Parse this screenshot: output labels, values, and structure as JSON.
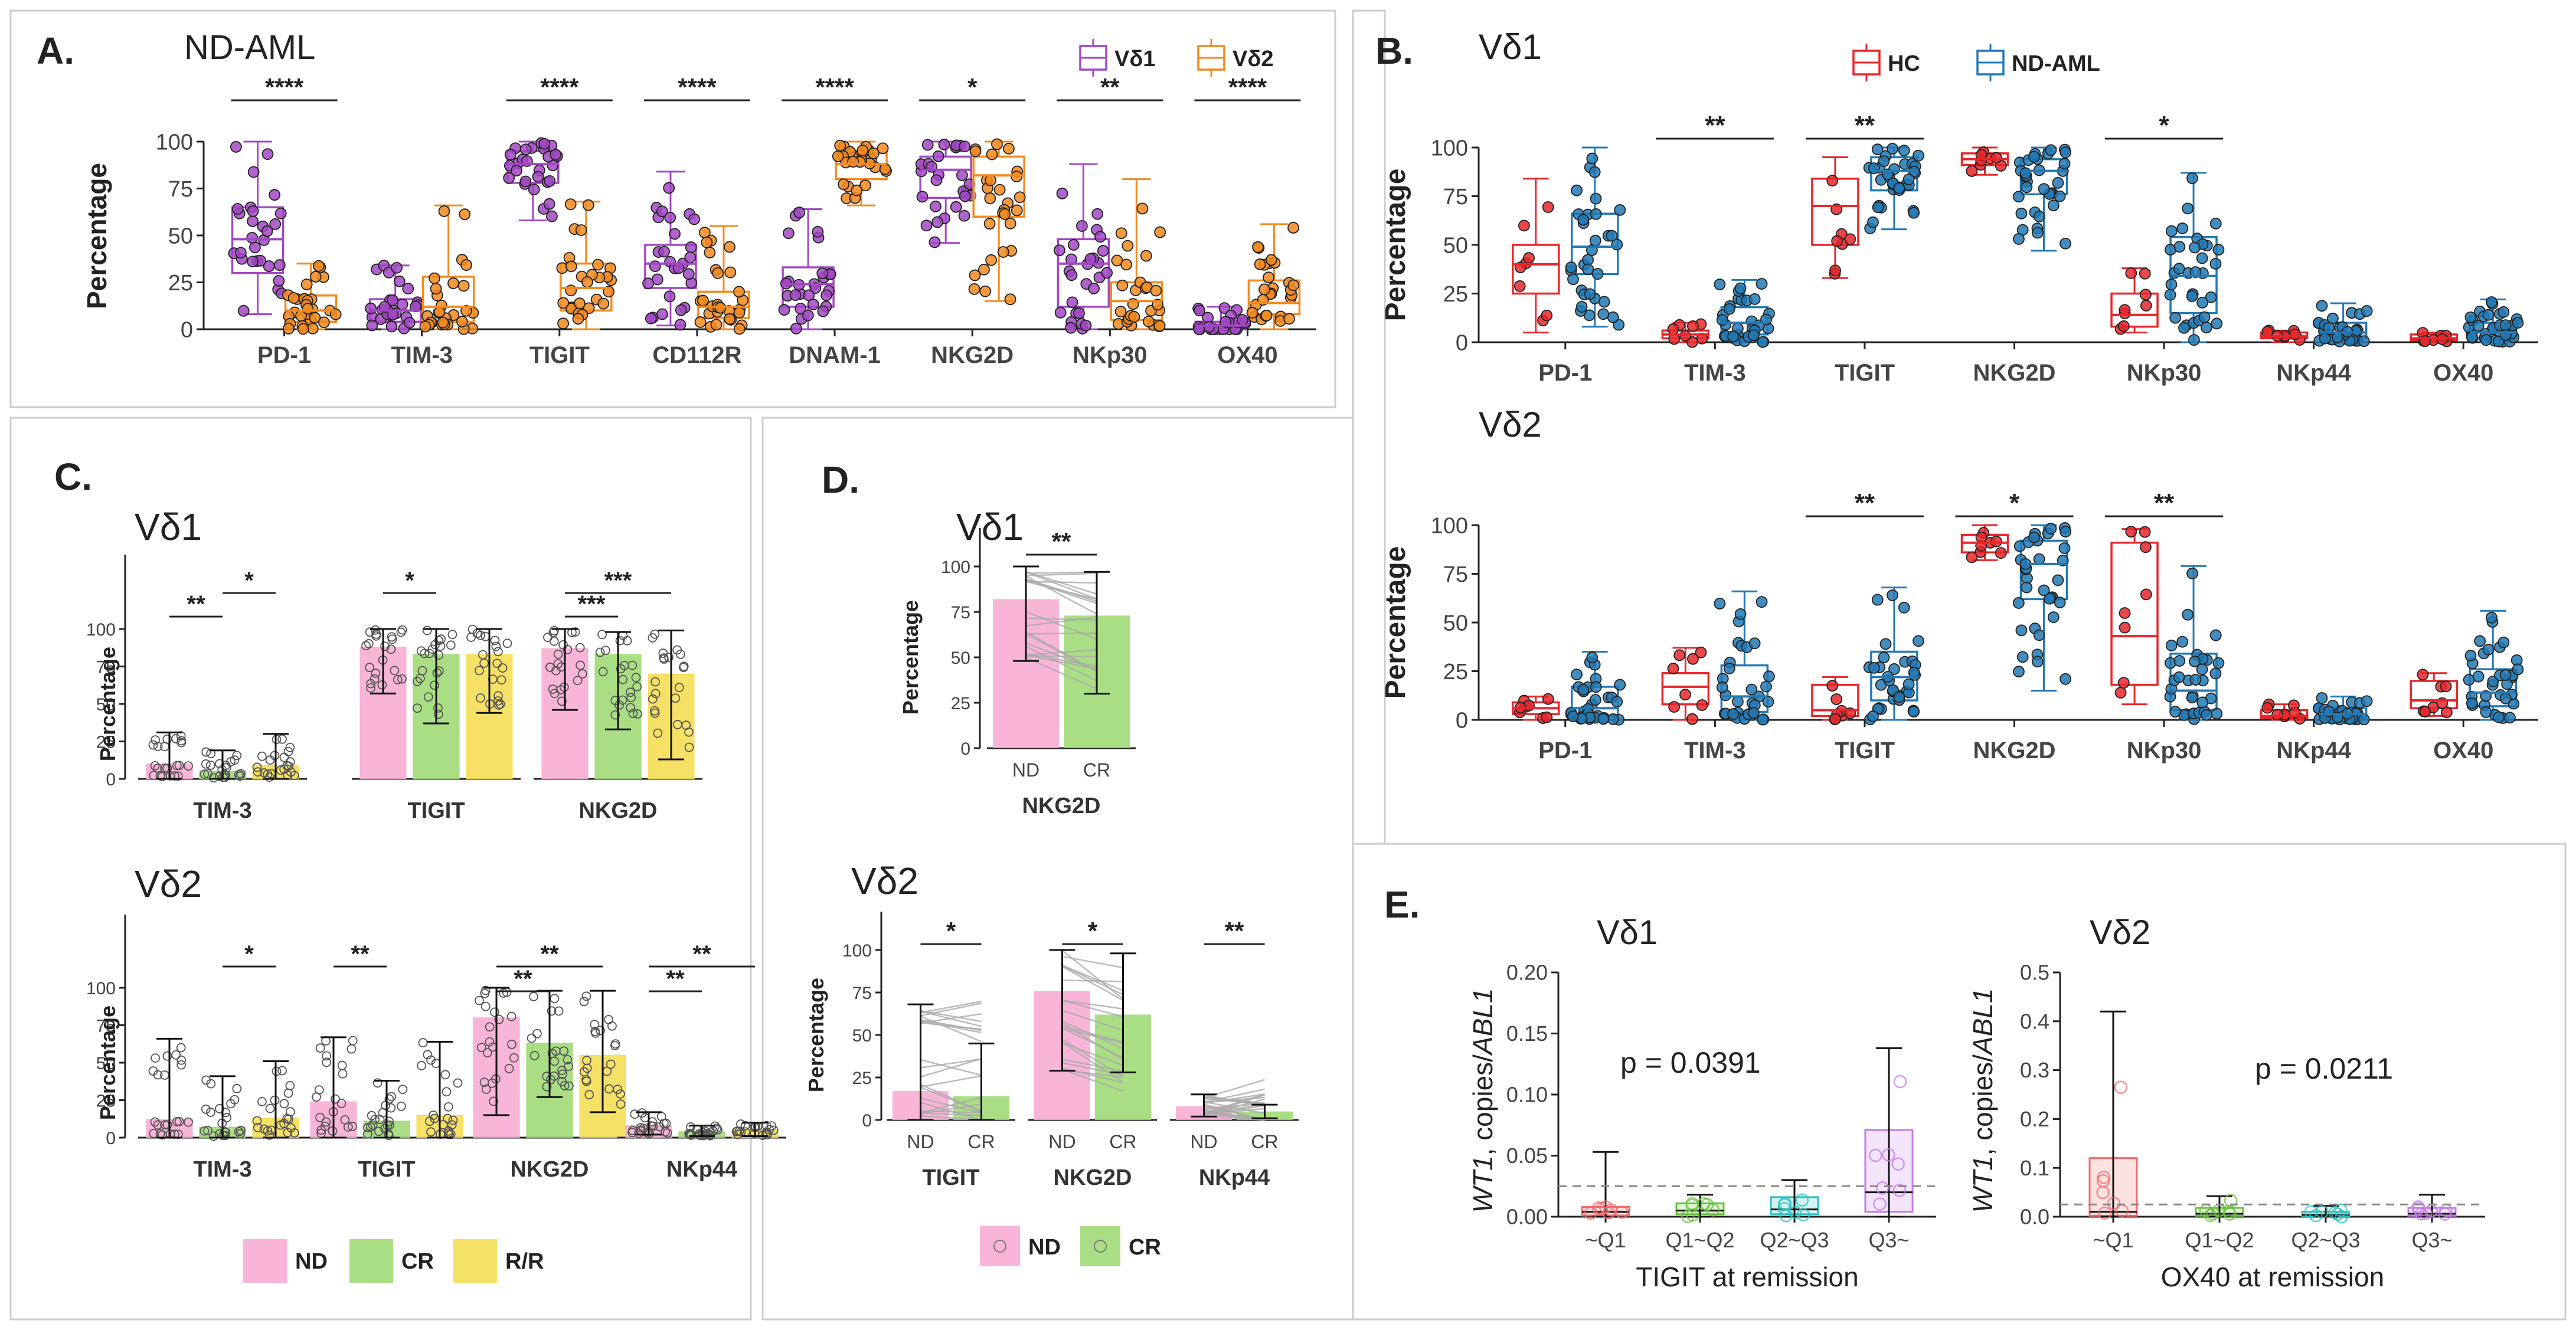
{
  "figure": {
    "border_color": "#cccccc",
    "colors": {
      "vd1": "#a247c4",
      "vd2": "#f28a1e",
      "hc": "#e8262a",
      "ndaml": "#2179b5",
      "nd": "#f7a8d0",
      "cr": "#9bd86e",
      "rr": "#f5dc4c",
      "q1": "#f26b6b",
      "q2": "#6ac23c",
      "q3": "#2bc0c0",
      "q4": "#c47ae8"
    }
  },
  "chart_data": [
    {
      "id": "A",
      "type": "box",
      "panel_label": "A.",
      "title": "ND-AML",
      "ylabel": "Percentage",
      "ylim": [
        0,
        100
      ],
      "yticks": [
        "0",
        "25",
        "50",
        "75",
        "100"
      ],
      "legend": [
        "Vδ1",
        "Vδ2"
      ],
      "categories": [
        "PD-1",
        "TIM-3",
        "TIGIT",
        "CD112R",
        "DNAM-1",
        "NKG2D",
        "NKp30",
        "OX40"
      ],
      "series": [
        {
          "name": "Vδ1",
          "boxes": [
            [
              8,
              30,
              48,
              65,
              100
            ],
            [
              0,
              4,
              10,
              16,
              34
            ],
            [
              58,
              78,
              88,
              95,
              100
            ],
            [
              2,
              22,
              35,
              45,
              84
            ],
            [
              0,
              12,
              24,
              33,
              64
            ],
            [
              46,
              70,
              85,
              92,
              100
            ],
            [
              0,
              12,
              35,
              48,
              88
            ],
            [
              0,
              0,
              2,
              4,
              12
            ]
          ]
        },
        {
          "name": "Vδ2",
          "boxes": [
            [
              0,
              4,
              10,
              18,
              35
            ],
            [
              0,
              4,
              12,
              28,
              66
            ],
            [
              0,
              10,
              22,
              35,
              68
            ],
            [
              0,
              6,
              12,
              20,
              55
            ],
            [
              66,
              80,
              88,
              94,
              100
            ],
            [
              15,
              60,
              82,
              92,
              100
            ],
            [
              0,
              5,
              15,
              25,
              80
            ],
            [
              0,
              8,
              14,
              26,
              56
            ]
          ]
        }
      ],
      "significance": [
        "****",
        "",
        "****",
        "****",
        "****",
        "*",
        "**",
        "****"
      ]
    },
    {
      "id": "B1",
      "type": "box",
      "panel_label": "B.",
      "title": "Vδ1",
      "ylabel": "Percentage",
      "ylim": [
        0,
        100
      ],
      "yticks": [
        "0",
        "25",
        "50",
        "75",
        "100"
      ],
      "legend": [
        "HC",
        "ND-AML"
      ],
      "categories": [
        "PD-1",
        "TIM-3",
        "TIGIT",
        "NKG2D",
        "NKp30",
        "NKp44",
        "OX40"
      ],
      "series": [
        {
          "name": "HC",
          "boxes": [
            [
              5,
              25,
              40,
              50,
              84
            ],
            [
              0,
              2,
              4,
              6,
              10
            ],
            [
              33,
              50,
              70,
              84,
              95
            ],
            [
              86,
              91,
              94,
              97,
              100
            ],
            [
              5,
              8,
              14,
              25,
              38
            ],
            [
              0,
              2,
              3,
              5,
              6
            ],
            [
              0,
              1,
              2,
              4,
              5
            ]
          ]
        },
        {
          "name": "ND-AML",
          "boxes": [
            [
              8,
              35,
              49,
              66,
              100
            ],
            [
              0,
              4,
              10,
              18,
              32
            ],
            [
              58,
              78,
              88,
              95,
              100
            ],
            [
              47,
              76,
              88,
              94,
              100
            ],
            [
              0,
              15,
              34,
              54,
              87
            ],
            [
              0,
              2,
              5,
              10,
              20
            ],
            [
              0,
              2,
              5,
              10,
              22
            ]
          ]
        }
      ],
      "significance": [
        "",
        "**",
        "**",
        "",
        "*",
        "",
        ""
      ]
    },
    {
      "id": "B2",
      "type": "box",
      "title": "Vδ2",
      "ylabel": "Percentage",
      "ylim": [
        0,
        100
      ],
      "yticks": [
        "0",
        "25",
        "50",
        "75",
        "100"
      ],
      "categories": [
        "PD-1",
        "TIM-3",
        "TIGIT",
        "NKG2D",
        "NKp30",
        "NKp44",
        "OX40"
      ],
      "series": [
        {
          "name": "HC",
          "boxes": [
            [
              0,
              3,
              6,
              9,
              12
            ],
            [
              0,
              8,
              17,
              24,
              37
            ],
            [
              0,
              2,
              5,
              18,
              22
            ],
            [
              82,
              86,
              91,
              95,
              100
            ],
            [
              8,
              18,
              43,
              91,
              98
            ],
            [
              0,
              1,
              2,
              5,
              8
            ],
            [
              2,
              6,
              10,
              20,
              24
            ]
          ]
        },
        {
          "name": "ND-AML",
          "boxes": [
            [
              0,
              2,
              6,
              17,
              35
            ],
            [
              0,
              4,
              12,
              28,
              66
            ],
            [
              0,
              10,
              22,
              35,
              68
            ],
            [
              15,
              62,
              80,
              92,
              100
            ],
            [
              0,
              5,
              15,
              34,
              79
            ],
            [
              0,
              1,
              3,
              6,
              12
            ],
            [
              0,
              7,
              14,
              26,
              56
            ]
          ]
        }
      ],
      "significance": [
        "",
        "",
        "**",
        "*",
        "**",
        "",
        ""
      ]
    },
    {
      "id": "C1",
      "type": "bar",
      "panel_label": "C.",
      "title": "Vδ1",
      "ylabel": "Percentage",
      "ylim": [
        0,
        100
      ],
      "yticks": [
        "0",
        "25",
        "50",
        "75",
        "100"
      ],
      "groups": [
        "TIM-3",
        "TIGIT",
        "NKG2D"
      ],
      "series_names": [
        "ND",
        "CR",
        "R/R"
      ],
      "values": [
        [
          10,
          5,
          9
        ],
        [
          88,
          83,
          83
        ],
        [
          87,
          83,
          70
        ]
      ],
      "err_low": [
        [
          0,
          0,
          0
        ],
        [
          57,
          37,
          44
        ],
        [
          46,
          33,
          13
        ]
      ],
      "err_high": [
        [
          31,
          19,
          30
        ],
        [
          100,
          100,
          100
        ],
        [
          100,
          98,
          99
        ]
      ],
      "significance": [
        [
          "**",
          "*"
        ],
        [
          "*"
        ],
        [
          "***",
          "***"
        ]
      ]
    },
    {
      "id": "C2",
      "type": "bar",
      "title": "Vδ2",
      "ylabel": "Percentage",
      "ylim": [
        0,
        100
      ],
      "yticks": [
        "0",
        "25",
        "50",
        "75",
        "100"
      ],
      "groups": [
        "TIM-3",
        "TIGIT",
        "NKG2D",
        "NKp44"
      ],
      "series_names": [
        "ND",
        "CR",
        "R/R"
      ],
      "values": [
        [
          12,
          7,
          13
        ],
        [
          24,
          11,
          15
        ],
        [
          80,
          63,
          55
        ],
        [
          8,
          4,
          5
        ]
      ],
      "err_low": [
        [
          0,
          0,
          0
        ],
        [
          0,
          0,
          0
        ],
        [
          15,
          27,
          17
        ],
        [
          2,
          1,
          1
        ]
      ],
      "err_high": [
        [
          66,
          41,
          51
        ],
        [
          67,
          38,
          64
        ],
        [
          100,
          98,
          98
        ],
        [
          17,
          8,
          10
        ]
      ],
      "significance": [
        [
          "*"
        ],
        [
          "**"
        ],
        [
          "**",
          "**"
        ],
        [
          "**",
          "**"
        ]
      ],
      "legend": [
        "ND",
        "CR",
        "R/R"
      ]
    },
    {
      "id": "D1",
      "type": "paired-bar",
      "panel_label": "D.",
      "title": "Vδ1",
      "ylabel": "Percentage",
      "ylim": [
        0,
        100
      ],
      "yticks": [
        "0",
        "25",
        "50",
        "75",
        "100"
      ],
      "groups": [
        "NKG2D"
      ],
      "xticks": [
        "ND",
        "CR"
      ],
      "values": [
        [
          82,
          73
        ]
      ],
      "err_low": [
        [
          48,
          30
        ]
      ],
      "err_high": [
        [
          100,
          97
        ]
      ],
      "significance": [
        "**"
      ]
    },
    {
      "id": "D2",
      "type": "paired-bar",
      "title": "Vδ2",
      "ylabel": "Percentage",
      "ylim": [
        0,
        100
      ],
      "yticks": [
        "0",
        "25",
        "50",
        "75",
        "100"
      ],
      "groups": [
        "TIGIT",
        "NKG2D",
        "NKp44"
      ],
      "xticks": [
        "ND",
        "CR"
      ],
      "values": [
        [
          17,
          14
        ],
        [
          76,
          62
        ],
        [
          8,
          5
        ]
      ],
      "err_low": [
        [
          0,
          0
        ],
        [
          29,
          28
        ],
        [
          2,
          1
        ]
      ],
      "err_high": [
        [
          68,
          45
        ],
        [
          100,
          98
        ],
        [
          15,
          9
        ]
      ],
      "significance": [
        "*",
        "*",
        "**"
      ],
      "legend": [
        "ND",
        "CR"
      ]
    },
    {
      "id": "E1",
      "type": "box",
      "panel_label": "E.",
      "title": "Vδ1",
      "ylabel_parts": [
        "WT1",
        ", copies/",
        "ABL1"
      ],
      "ylim": [
        0,
        0.2
      ],
      "yticks": [
        "0.00",
        "0.05",
        "0.10",
        "0.15",
        "0.20"
      ],
      "xlabel": "TIGIT at remission",
      "categories": [
        "~Q1",
        "Q1~Q2",
        "Q2~Q3",
        "Q3~"
      ],
      "boxes": [
        [
          0,
          0.001,
          0.004,
          0.008,
          0.053
        ],
        [
          0,
          0.002,
          0.005,
          0.011,
          0.018
        ],
        [
          0,
          0.002,
          0.006,
          0.016,
          0.03
        ],
        [
          0,
          0.004,
          0.02,
          0.071,
          0.138
        ]
      ],
      "reference_line": 0.025,
      "annotation": "p = 0.0391"
    },
    {
      "id": "E2",
      "type": "box",
      "title": "Vδ2",
      "ylabel_parts": [
        "WT1",
        ", copies/",
        "ABL1"
      ],
      "ylim": [
        0,
        0.5
      ],
      "yticks": [
        "0.0",
        "0.1",
        "0.2",
        "0.3",
        "0.4",
        "0.5"
      ],
      "xlabel": "OX40 at remission",
      "categories": [
        "~Q1",
        "Q1~Q2",
        "Q2~Q3",
        "Q3~"
      ],
      "boxes": [
        [
          0,
          0.002,
          0.01,
          0.12,
          0.42
        ],
        [
          0,
          0.002,
          0.006,
          0.018,
          0.042
        ],
        [
          0,
          0.001,
          0.004,
          0.01,
          0.022
        ],
        [
          0,
          0.002,
          0.006,
          0.018,
          0.045
        ]
      ],
      "reference_line": 0.025,
      "annotation": "p = 0.0211"
    }
  ]
}
